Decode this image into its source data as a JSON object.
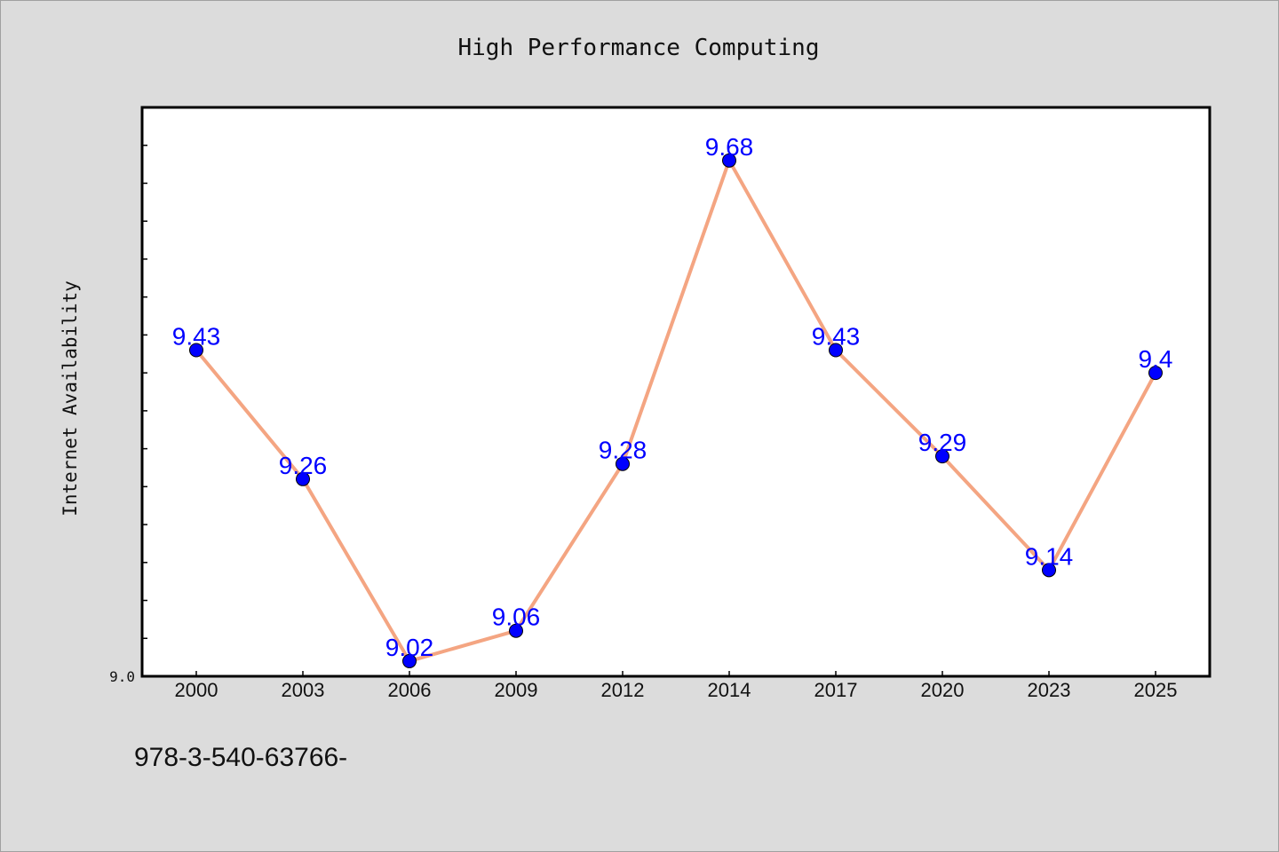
{
  "chart_data": {
    "type": "line",
    "title": "High Performance Computing",
    "xlabel": "",
    "ylabel": "Internet Availability",
    "categories": [
      "2000",
      "2003",
      "2006",
      "2009",
      "2012",
      "2014",
      "2017",
      "2020",
      "2023",
      "2025"
    ],
    "series": [
      {
        "values": [
          9.43,
          9.26,
          9.02,
          9.06,
          9.28,
          9.68,
          9.43,
          9.29,
          9.14,
          9.4
        ],
        "data_labels": [
          "9.43",
          "9.26",
          "9.02",
          "9.06",
          "9.28",
          "9.68",
          "9.43",
          "9.29",
          "9.14",
          "9.4"
        ]
      }
    ],
    "ylim": [
      9.0,
      9.75
    ],
    "y_tick_labels": [
      "9.0"
    ],
    "grid": false,
    "line_color": "#f4a582",
    "marker_color": "#0000ff",
    "label_color": "#0000ff"
  },
  "footer": {
    "text": "978-3-540-63766-"
  }
}
